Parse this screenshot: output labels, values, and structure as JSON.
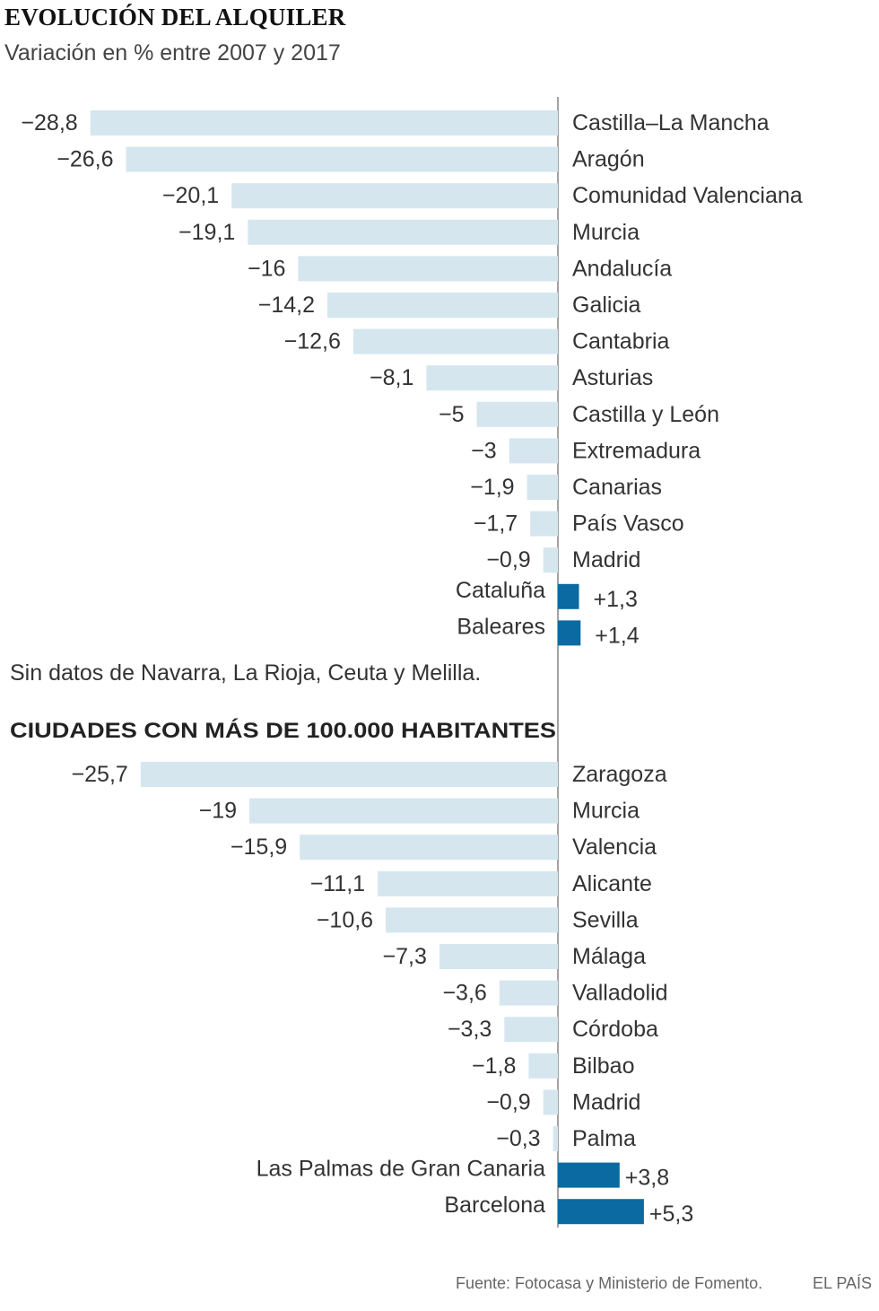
{
  "title": "EVOLUCIÓN DEL ALQUILER",
  "subtitle": "Variación en % entre 2007 y 2017",
  "note": "Sin datos de Navarra, La Rioja, Ceuta y Melilla.",
  "footer": {
    "source": "Fuente: Fotocasa y Ministerio de Fomento.",
    "brand": "EL PAÍS"
  },
  "colors": {
    "negative": "#d5e6ef",
    "positive": "#0a6aa1",
    "axis": "#666666",
    "text": "#333333"
  },
  "chart_data": [
    {
      "type": "bar",
      "title": "",
      "orientation": "horizontal",
      "unit": "%",
      "categories": [
        "Castilla–La Mancha",
        "Aragón",
        "Comunidad Valenciana",
        "Murcia",
        "Andalucía",
        "Galicia",
        "Cantabria",
        "Asturias",
        "Castilla y León",
        "Extremadura",
        "Canarias",
        "País Vasco",
        "Madrid",
        "Cataluña",
        "Baleares"
      ],
      "values": [
        -28.8,
        -26.6,
        -20.1,
        -19.1,
        -16,
        -14.2,
        -12.6,
        -8.1,
        -5,
        -3,
        -1.9,
        -1.7,
        -0.9,
        1.3,
        1.4
      ],
      "value_labels": [
        "−28,8",
        "−26,6",
        "−20,1",
        "−19,1",
        "−16",
        "−14,2",
        "−12,6",
        "−8,1",
        "−5",
        "−3",
        "−1,9",
        "−1,7",
        "−0,9",
        "+1,3",
        "+1,4"
      ]
    },
    {
      "type": "bar",
      "title": "CIUDADES CON MÁS DE 100.000 HABITANTES",
      "orientation": "horizontal",
      "unit": "%",
      "categories": [
        "Zaragoza",
        "Murcia",
        "Valencia",
        "Alicante",
        "Sevilla",
        "Málaga",
        "Valladolid",
        "Córdoba",
        "Bilbao",
        "Madrid",
        "Palma",
        "Las Palmas de Gran Canaria",
        "Barcelona"
      ],
      "values": [
        -25.7,
        -19,
        -15.9,
        -11.1,
        -10.6,
        -7.3,
        -3.6,
        -3.3,
        -1.8,
        -0.9,
        -0.3,
        3.8,
        5.3
      ],
      "value_labels": [
        "−25,7",
        "−19",
        "−15,9",
        "−11,1",
        "−10,6",
        "−7,3",
        "−3,6",
        "−3,3",
        "−1,8",
        "−0,9",
        "−0,3",
        "+3,8",
        "+5,3"
      ]
    }
  ]
}
